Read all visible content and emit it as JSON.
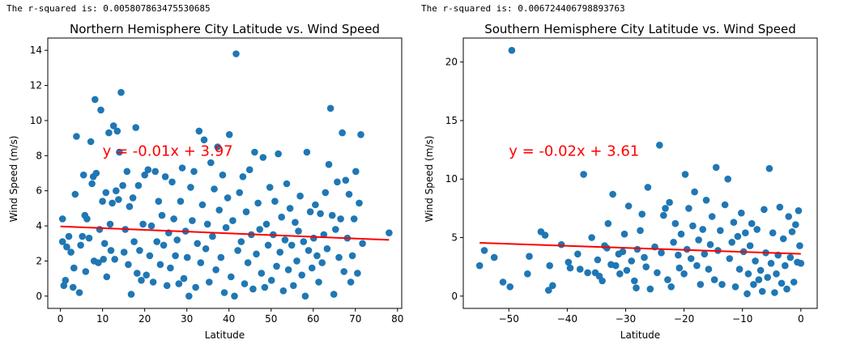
{
  "outputs": [
    {
      "rsq_label": "The r-squared is: 0.005807863475530685"
    },
    {
      "rsq_label": "The r-squared is: 0.006724406798893763"
    }
  ],
  "colors": {
    "points": "#1f77b4",
    "regression": "#ff0000",
    "axes": "#000000"
  },
  "chart_data": [
    {
      "type": "scatter",
      "title": "Northern Hemisphere City Latitude vs. Wind Speed",
      "xlabel": "Latitude",
      "ylabel": "Wind Speed (m/s)",
      "xlim": [
        -3,
        81
      ],
      "ylim": [
        -0.7,
        14.7
      ],
      "xticks": [
        0,
        10,
        20,
        30,
        40,
        50,
        60,
        70,
        80
      ],
      "yticks": [
        0,
        2,
        4,
        6,
        8,
        10,
        12,
        14
      ],
      "grid": false,
      "regression": {
        "equation": "y = -0.01x + 3.97",
        "x": [
          0,
          78
        ],
        "y": [
          3.97,
          3.2
        ]
      },
      "annotation_pos": {
        "x": 10,
        "y": 8.0
      },
      "points": [
        [
          0.5,
          4.4
        ],
        [
          0.8,
          0.6
        ],
        [
          0.5,
          3.1
        ],
        [
          1.5,
          2.8
        ],
        [
          1.2,
          0.9
        ],
        [
          2.0,
          3.4
        ],
        [
          2.5,
          2.5
        ],
        [
          3.0,
          0.5
        ],
        [
          3.2,
          1.6
        ],
        [
          3.5,
          5.8
        ],
        [
          3.8,
          9.1
        ],
        [
          4.5,
          0.2
        ],
        [
          4.8,
          2.9
        ],
        [
          5.2,
          3.4
        ],
        [
          5.5,
          6.9
        ],
        [
          5.8,
          4.6
        ],
        [
          6.0,
          1.4
        ],
        [
          6.3,
          4.4
        ],
        [
          6.8,
          3.3
        ],
        [
          7.2,
          8.8
        ],
        [
          7.5,
          6.4
        ],
        [
          7.8,
          6.8
        ],
        [
          8.0,
          2.0
        ],
        [
          8.2,
          11.2
        ],
        [
          8.5,
          7.0
        ],
        [
          9.0,
          1.9
        ],
        [
          9.3,
          3.8
        ],
        [
          9.6,
          10.6
        ],
        [
          10.0,
          5.4
        ],
        [
          10.2,
          2.1
        ],
        [
          10.5,
          3.0
        ],
        [
          10.8,
          5.9
        ],
        [
          11.0,
          1.1
        ],
        [
          11.5,
          9.3
        ],
        [
          11.8,
          4.1
        ],
        [
          12.0,
          2.6
        ],
        [
          12.3,
          5.3
        ],
        [
          12.6,
          9.7
        ],
        [
          12.9,
          2.1
        ],
        [
          13.2,
          6.0
        ],
        [
          13.5,
          9.4
        ],
        [
          13.8,
          5.5
        ],
        [
          14.0,
          8.2
        ],
        [
          14.4,
          11.6
        ],
        [
          14.8,
          6.3
        ],
        [
          15.1,
          2.5
        ],
        [
          15.4,
          3.8
        ],
        [
          15.8,
          7.1
        ],
        [
          16.1,
          1.8
        ],
        [
          16.4,
          5.1
        ],
        [
          16.8,
          0.1
        ],
        [
          17.2,
          5.6
        ],
        [
          17.5,
          3.1
        ],
        [
          17.9,
          9.6
        ],
        [
          18.2,
          1.3
        ],
        [
          18.5,
          6.3
        ],
        [
          18.8,
          2.6
        ],
        [
          19.2,
          0.9
        ],
        [
          19.6,
          4.1
        ],
        [
          20.0,
          6.9
        ],
        [
          20.4,
          1.2
        ],
        [
          20.8,
          7.2
        ],
        [
          21.2,
          2.3
        ],
        [
          21.6,
          4.0
        ],
        [
          22.0,
          0.8
        ],
        [
          22.5,
          7.1
        ],
        [
          22.9,
          3.1
        ],
        [
          23.3,
          5.4
        ],
        [
          23.7,
          1.8
        ],
        [
          24.1,
          4.6
        ],
        [
          24.5,
          2.9
        ],
        [
          24.9,
          6.8
        ],
        [
          25.3,
          0.6
        ],
        [
          25.7,
          3.6
        ],
        [
          26.1,
          1.6
        ],
        [
          26.5,
          6.5
        ],
        [
          26.9,
          4.4
        ],
        [
          27.3,
          2.3
        ],
        [
          27.7,
          3.2
        ],
        [
          28.1,
          0.7
        ],
        [
          28.5,
          5.4
        ],
        [
          28.9,
          7.3
        ],
        [
          29.3,
          1.0
        ],
        [
          29.7,
          3.7
        ],
        [
          30.1,
          2.2
        ],
        [
          30.5,
          0.0
        ],
        [
          30.9,
          6.2
        ],
        [
          31.3,
          4.3
        ],
        [
          31.7,
          7.1
        ],
        [
          32.1,
          0.5
        ],
        [
          32.5,
          3.0
        ],
        [
          32.9,
          9.4
        ],
        [
          33.3,
          1.9
        ],
        [
          33.7,
          5.2
        ],
        [
          34.1,
          8.9
        ],
        [
          34.5,
          2.7
        ],
        [
          34.9,
          4.1
        ],
        [
          35.3,
          0.8
        ],
        [
          35.7,
          7.6
        ],
        [
          36.1,
          3.4
        ],
        [
          36.5,
          6.1
        ],
        [
          36.9,
          1.5
        ],
        [
          37.3,
          8.5
        ],
        [
          37.7,
          4.9
        ],
        [
          38.1,
          2.2
        ],
        [
          38.5,
          6.9
        ],
        [
          38.9,
          0.2
        ],
        [
          39.3,
          3.9
        ],
        [
          39.7,
          5.6
        ],
        [
          40.1,
          9.2
        ],
        [
          40.5,
          1.1
        ],
        [
          40.9,
          4.3
        ],
        [
          41.3,
          0.0
        ],
        [
          41.7,
          13.8
        ],
        [
          42.1,
          2.6
        ],
        [
          42.5,
          5.9
        ],
        [
          42.9,
          3.1
        ],
        [
          43.3,
          6.8
        ],
        [
          43.7,
          0.7
        ],
        [
          44.1,
          4.8
        ],
        [
          44.5,
          1.9
        ],
        [
          44.9,
          7.2
        ],
        [
          45.3,
          3.5
        ],
        [
          45.7,
          0.4
        ],
        [
          46.1,
          8.2
        ],
        [
          46.5,
          2.4
        ],
        [
          46.9,
          5.3
        ],
        [
          47.3,
          3.8
        ],
        [
          47.7,
          1.3
        ],
        [
          48.1,
          7.9
        ],
        [
          48.5,
          0.5
        ],
        [
          48.9,
          4.1
        ],
        [
          49.3,
          2.9
        ],
        [
          49.7,
          6.2
        ],
        [
          50.1,
          0.9
        ],
        [
          50.5,
          3.5
        ],
        [
          50.9,
          5.4
        ],
        [
          51.3,
          1.7
        ],
        [
          51.7,
          8.1
        ],
        [
          52.1,
          2.5
        ],
        [
          52.5,
          4.5
        ],
        [
          52.9,
          0.3
        ],
        [
          53.3,
          3.2
        ],
        [
          53.7,
          6.4
        ],
        [
          54.1,
          1.5
        ],
        [
          54.5,
          5.0
        ],
        [
          54.9,
          2.9
        ],
        [
          55.3,
          0.6
        ],
        [
          55.7,
          4.2
        ],
        [
          56.1,
          2.0
        ],
        [
          56.5,
          3.7
        ],
        [
          56.9,
          5.7
        ],
        [
          57.3,
          1.2
        ],
        [
          57.7,
          3.1
        ],
        [
          58.1,
          0.0
        ],
        [
          58.5,
          8.2
        ],
        [
          58.9,
          2.6
        ],
        [
          59.3,
          4.8
        ],
        [
          59.7,
          1.6
        ],
        [
          60.1,
          3.3
        ],
        [
          60.5,
          5.2
        ],
        [
          60.9,
          2.3
        ],
        [
          61.3,
          0.8
        ],
        [
          61.7,
          4.7
        ],
        [
          62.1,
          1.9
        ],
        [
          62.5,
          3.5
        ],
        [
          62.9,
          5.9
        ],
        [
          63.3,
          2.7
        ],
        [
          63.7,
          7.5
        ],
        [
          64.1,
          10.7
        ],
        [
          64.5,
          4.6
        ],
        [
          64.9,
          0.1
        ],
        [
          65.3,
          3.8
        ],
        [
          65.7,
          6.5
        ],
        [
          66.1,
          2.2
        ],
        [
          66.5,
          4.4
        ],
        [
          66.9,
          9.3
        ],
        [
          67.3,
          1.4
        ],
        [
          67.7,
          6.6
        ],
        [
          68.1,
          3.3
        ],
        [
          68.5,
          5.8
        ],
        [
          68.9,
          0.8
        ],
        [
          69.3,
          2.3
        ],
        [
          69.7,
          4.4
        ],
        [
          70.1,
          7.1
        ],
        [
          70.5,
          1.3
        ],
        [
          70.9,
          5.3
        ],
        [
          71.3,
          9.2
        ],
        [
          71.7,
          3.0
        ],
        [
          78.0,
          3.6
        ]
      ]
    },
    {
      "type": "scatter",
      "title": "Southern Hemisphere City Latitude vs. Wind Speed",
      "xlabel": "Latitude",
      "ylabel": "Wind Speed (m/s)",
      "xlim": [
        -57.8,
        2.8
      ],
      "ylim": [
        -1.05,
        22.05
      ],
      "xticks": [
        -50,
        -40,
        -30,
        -20,
        -10,
        0
      ],
      "yticks": [
        0,
        5,
        10,
        15,
        20
      ],
      "grid": false,
      "regression": {
        "equation": "y = -0.02x + 3.61",
        "x": [
          -55,
          0
        ],
        "y": [
          4.55,
          3.61
        ]
      },
      "annotation_pos": {
        "x": -50,
        "y": 12.0
      },
      "points": [
        [
          -55.0,
          2.6
        ],
        [
          -54.2,
          3.9
        ],
        [
          -52.5,
          3.3
        ],
        [
          -51.0,
          1.2
        ],
        [
          -49.5,
          21.0
        ],
        [
          -49.8,
          0.8
        ],
        [
          -46.5,
          3.4
        ],
        [
          -46.8,
          1.9
        ],
        [
          -44.5,
          5.5
        ],
        [
          -43.8,
          5.2
        ],
        [
          -43.2,
          0.5
        ],
        [
          -43.0,
          2.6
        ],
        [
          -42.5,
          0.9
        ],
        [
          -41.0,
          4.4
        ],
        [
          -39.8,
          2.9
        ],
        [
          -39.5,
          2.4
        ],
        [
          -38.2,
          3.6
        ],
        [
          -37.8,
          2.3
        ],
        [
          -37.2,
          10.4
        ],
        [
          -36.5,
          2.0
        ],
        [
          -35.8,
          5.0
        ],
        [
          -35.2,
          2.0
        ],
        [
          -34.8,
          3.1
        ],
        [
          -34.5,
          1.7
        ],
        [
          -34.0,
          1.3
        ],
        [
          -33.6,
          4.3
        ],
        [
          -33.2,
          4.1
        ],
        [
          -33.0,
          6.2
        ],
        [
          -32.5,
          2.7
        ],
        [
          -32.2,
          8.7
        ],
        [
          -31.7,
          2.6
        ],
        [
          -31.2,
          3.6
        ],
        [
          -31.0,
          1.9
        ],
        [
          -30.5,
          3.8
        ],
        [
          -30.2,
          5.3
        ],
        [
          -29.8,
          2.2
        ],
        [
          -29.5,
          7.7
        ],
        [
          -29.0,
          3.0
        ],
        [
          -28.5,
          1.3
        ],
        [
          -28.2,
          0.7
        ],
        [
          -28.0,
          4.0
        ],
        [
          -27.5,
          5.6
        ],
        [
          -27.2,
          7.0
        ],
        [
          -26.8,
          3.3
        ],
        [
          -26.5,
          2.5
        ],
        [
          -26.2,
          9.3
        ],
        [
          -25.8,
          0.6
        ],
        [
          -25.0,
          4.2
        ],
        [
          -24.6,
          2.0
        ],
        [
          -24.2,
          12.9
        ],
        [
          -23.9,
          3.7
        ],
        [
          -23.5,
          6.9
        ],
        [
          -23.2,
          7.5
        ],
        [
          -22.8,
          1.4
        ],
        [
          -22.5,
          8.0
        ],
        [
          -22.2,
          0.8
        ],
        [
          -21.8,
          4.6
        ],
        [
          -21.5,
          6.2
        ],
        [
          -21.0,
          3.5
        ],
        [
          -20.8,
          2.4
        ],
        [
          -20.5,
          5.3
        ],
        [
          -20.0,
          1.9
        ],
        [
          -19.8,
          10.4
        ],
        [
          -19.5,
          4.0
        ],
        [
          -19.2,
          7.5
        ],
        [
          -18.8,
          3.2
        ],
        [
          -18.5,
          6.0
        ],
        [
          -18.2,
          8.9
        ],
        [
          -17.8,
          2.6
        ],
        [
          -17.5,
          4.8
        ],
        [
          -17.2,
          1.0
        ],
        [
          -16.8,
          5.7
        ],
        [
          -16.5,
          3.6
        ],
        [
          -16.2,
          8.2
        ],
        [
          -15.8,
          2.3
        ],
        [
          -15.5,
          4.4
        ],
        [
          -15.2,
          6.8
        ],
        [
          -14.8,
          1.4
        ],
        [
          -14.5,
          11.0
        ],
        [
          -14.2,
          3.9
        ],
        [
          -13.8,
          5.6
        ],
        [
          -13.5,
          1.0
        ],
        [
          -13.0,
          7.8
        ],
        [
          -12.5,
          10.0
        ],
        [
          -12.2,
          3.2
        ],
        [
          -11.8,
          4.6
        ],
        [
          -11.5,
          6.3
        ],
        [
          -11.2,
          0.8
        ],
        [
          -10.8,
          5.1
        ],
        [
          -10.5,
          2.3
        ],
        [
          -10.2,
          7.1
        ],
        [
          -9.8,
          3.8
        ],
        [
          -9.5,
          5.4
        ],
        [
          -9.2,
          0.2
        ],
        [
          -9.0,
          1.9
        ],
        [
          -8.7,
          4.3
        ],
        [
          -8.4,
          6.2
        ],
        [
          -8.1,
          1.0
        ],
        [
          -7.8,
          3.0
        ],
        [
          -7.5,
          5.7
        ],
        [
          -7.2,
          1.4
        ],
        [
          -6.9,
          2.2
        ],
        [
          -6.6,
          0.4
        ],
        [
          -6.3,
          7.4
        ],
        [
          -6.0,
          3.7
        ],
        [
          -5.7,
          1.6
        ],
        [
          -5.4,
          10.9
        ],
        [
          -5.1,
          2.8
        ],
        [
          -4.8,
          5.4
        ],
        [
          -4.5,
          0.3
        ],
        [
          -4.2,
          1.9
        ],
        [
          -3.9,
          3.5
        ],
        [
          -3.6,
          7.6
        ],
        [
          -3.3,
          1.1
        ],
        [
          -3.0,
          4.9
        ],
        [
          -2.7,
          2.6
        ],
        [
          -2.4,
          0.6
        ],
        [
          -2.1,
          6.8
        ],
        [
          -1.8,
          3.3
        ],
        [
          -1.5,
          5.5
        ],
        [
          -1.2,
          1.2
        ],
        [
          -0.9,
          6.1
        ],
        [
          -0.6,
          2.9
        ],
        [
          -0.4,
          7.3
        ],
        [
          -0.2,
          4.3
        ],
        [
          0.0,
          2.8
        ]
      ]
    }
  ]
}
